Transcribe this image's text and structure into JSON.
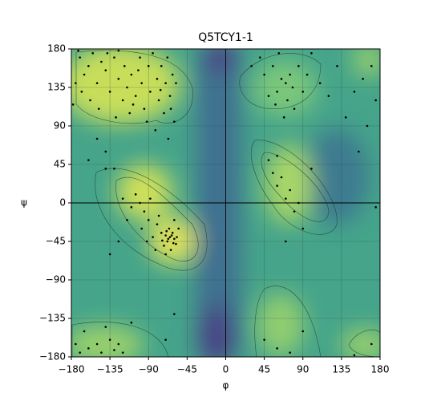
{
  "chart_data": {
    "type": "scatter",
    "title": "Q5TCY1-1",
    "xlabel": "φ",
    "ylabel": "ψ",
    "x": [
      -170,
      -165,
      -160,
      -155,
      -150,
      -145,
      -140,
      -135,
      -130,
      -125,
      -120,
      -118,
      -115,
      -110,
      -105,
      -100,
      -98,
      -95,
      -90,
      -88,
      -85,
      -80,
      -78,
      -75,
      -72,
      -70,
      -68,
      -65,
      -62,
      -60,
      -175,
      -178,
      -168,
      -158,
      -148,
      -138,
      -128,
      -112,
      -92,
      -82,
      -67,
      -160,
      -130,
      -140,
      -150,
      -172,
      -125,
      -102,
      -108,
      -76,
      -58,
      -64,
      -65,
      -62,
      -68,
      -70,
      -60,
      -66,
      -72,
      -58,
      -64,
      -75,
      -80,
      -85,
      -90,
      -95,
      -100,
      -105,
      -110,
      -88,
      -78,
      -70,
      -55,
      -60,
      -115,
      -120,
      -98,
      -82,
      -92,
      -67,
      -63,
      -69,
      -61,
      -74,
      -57,
      -125,
      -135,
      -140,
      55,
      60,
      65,
      70,
      72,
      75,
      78,
      80,
      68,
      58,
      85,
      62,
      90,
      50,
      45,
      95,
      100,
      110,
      120,
      130,
      140,
      150,
      160,
      170,
      175,
      165,
      155,
      40,
      30,
      50,
      55,
      60,
      65,
      70,
      75,
      80,
      85,
      60,
      100,
      90,
      70,
      175,
      -170,
      -160,
      -150,
      -145,
      -135,
      -130,
      -165,
      -140,
      -120,
      -110,
      -125,
      -175,
      45,
      60,
      75,
      90,
      170,
      -60,
      -70,
      150
    ],
    "y": [
      170,
      150,
      160,
      175,
      140,
      165,
      155,
      130,
      170,
      145,
      120,
      160,
      135,
      150,
      125,
      170,
      140,
      110,
      160,
      130,
      175,
      145,
      120,
      160,
      105,
      140,
      170,
      125,
      150,
      95,
      140,
      115,
      130,
      120,
      110,
      175,
      100,
      105,
      95,
      85,
      75,
      50,
      40,
      60,
      75,
      178,
      178,
      155,
      115,
      132,
      140,
      110,
      -40,
      -35,
      -45,
      -38,
      -42,
      -30,
      -50,
      -48,
      -55,
      -35,
      -25,
      -40,
      -20,
      -10,
      0,
      10,
      -5,
      5,
      -15,
      -60,
      -30,
      -20,
      -20,
      5,
      -30,
      -55,
      -45,
      -42,
      -38,
      -33,
      -47,
      -44,
      -40,
      -45,
      -60,
      40,
      160,
      130,
      145,
      140,
      120,
      150,
      135,
      110,
      100,
      115,
      160,
      175,
      130,
      125,
      150,
      150,
      175,
      140,
      125,
      160,
      100,
      130,
      145,
      160,
      120,
      90,
      60,
      170,
      160,
      50,
      35,
      20,
      30,
      5,
      15,
      -10,
      0,
      55,
      40,
      -30,
      -45,
      -5,
      -175,
      -170,
      -165,
      -175,
      -160,
      -172,
      -150,
      -145,
      -175,
      -140,
      -165,
      -165,
      -160,
      -170,
      -175,
      -150,
      -165,
      -130,
      -160,
      -178
    ],
    "color": "#000000",
    "xlim": [
      -180,
      180
    ],
    "ylim": [
      -180,
      180
    ],
    "xticks": [
      {
        "value": -180,
        "label": "−180"
      },
      {
        "value": -135,
        "label": "−135"
      },
      {
        "value": -90,
        "label": "−90"
      },
      {
        "value": -45,
        "label": "−45"
      },
      0,
      45,
      90,
      135,
      180
    ],
    "yticks": [
      {
        "value": -180,
        "label": "−180"
      },
      {
        "value": -135,
        "label": "−135"
      },
      {
        "value": -90,
        "label": "−90"
      },
      {
        "value": -45,
        "label": "−45"
      },
      0,
      45,
      90,
      135,
      180
    ],
    "grid": true
  }
}
